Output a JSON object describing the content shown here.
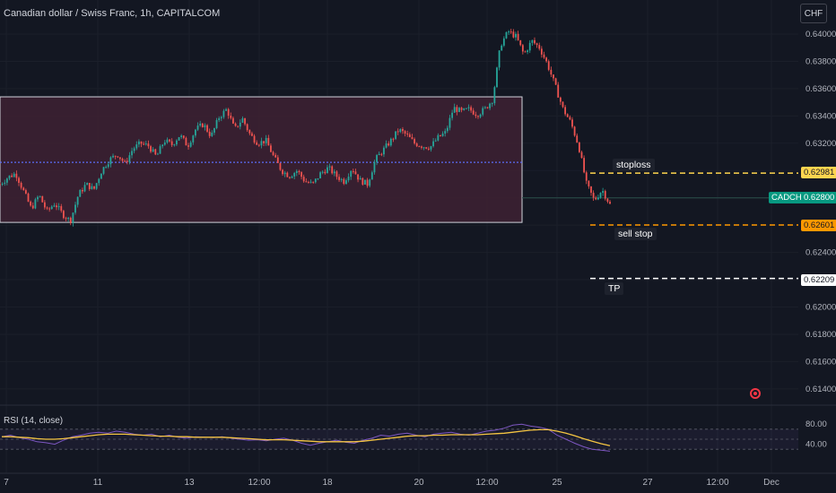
{
  "header": {
    "title": "Canadian dollar / Swiss Franc, 1h, CAPITALCOM",
    "currency_button": "CHF"
  },
  "price_axis": {
    "ticks": [
      "0.64000",
      "0.63800",
      "0.63600",
      "0.63400",
      "0.63200",
      "0.62400",
      "0.62000",
      "0.61800",
      "0.61600",
      "0.61400"
    ]
  },
  "price_boxes": {
    "stoploss_value": "0.62981",
    "symbol_label": "CADCHF",
    "current_value": "0.62800",
    "sellstop_value": "0.62601",
    "tp_value": "0.62209"
  },
  "annotations": {
    "stoploss": "stoploss",
    "sell_stop": "sell stop",
    "tp": "TP"
  },
  "rsi": {
    "label": "RSI (14, close)",
    "ticks": [
      "80.00",
      "40.00"
    ]
  },
  "time_axis": {
    "ticks": [
      "7",
      "11",
      "13",
      "12:00",
      "18",
      "20",
      "12:00",
      "25",
      "27",
      "12:00",
      "Dec"
    ]
  },
  "colors": {
    "background": "#131722",
    "up": "#26a69a",
    "down": "#ef5350",
    "box_fill": "#3e2133",
    "stoploss_line": "#ffd54f",
    "sellstop_line": "#ff9800",
    "tp_line": "#ffffff",
    "rsi_line": "#7e57c2",
    "rsi_ma": "#f5c542"
  },
  "chart_data": {
    "type": "candlestick",
    "x_ticks": [
      "7",
      "11",
      "13",
      "12:00",
      "18",
      "20",
      "12:00",
      "25",
      "27",
      "12:00",
      "Dec"
    ],
    "price_range": [
      0.613,
      0.6415
    ],
    "key_levels": {
      "stoploss": 0.62981,
      "current": 0.628,
      "sell_stop": 0.62601,
      "tp": 0.62209
    },
    "range_box": {
      "top": 0.6354,
      "bottom": 0.6262,
      "midline": 0.6306
    },
    "close_path": [
      0.629,
      0.6295,
      0.6298,
      0.6285,
      0.6272,
      0.6282,
      0.627,
      0.6276,
      0.6268,
      0.6263,
      0.6282,
      0.629,
      0.6286,
      0.63,
      0.6308,
      0.6312,
      0.6305,
      0.6316,
      0.632,
      0.6318,
      0.631,
      0.6322,
      0.6319,
      0.6326,
      0.6318,
      0.633,
      0.6334,
      0.6325,
      0.6339,
      0.6345,
      0.633,
      0.6338,
      0.6326,
      0.632,
      0.6322,
      0.631,
      0.63,
      0.6296,
      0.63,
      0.6292,
      0.629,
      0.6298,
      0.6302,
      0.6296,
      0.6292,
      0.6302,
      0.6293,
      0.629,
      0.6308,
      0.6315,
      0.6322,
      0.633,
      0.6326,
      0.632,
      0.6318,
      0.6317,
      0.6324,
      0.6328,
      0.6346,
      0.6343,
      0.6345,
      0.6341,
      0.6345,
      0.6352,
      0.6392,
      0.6402,
      0.6398,
      0.6385,
      0.6395,
      0.639,
      0.6378,
      0.6362,
      0.6345,
      0.6335,
      0.6318,
      0.629,
      0.6278,
      0.6286,
      0.6275
    ],
    "rsi": {
      "range": [
        0,
        100
      ],
      "bands": [
        70,
        30
      ],
      "values": [
        55,
        58,
        53,
        50,
        45,
        43,
        40,
        48,
        55,
        58,
        62,
        64,
        62,
        66,
        64,
        60,
        58,
        60,
        55,
        58,
        54,
        52,
        55,
        54,
        53,
        55,
        52,
        50,
        48,
        49,
        47,
        50,
        52,
        48,
        42,
        38,
        42,
        45,
        48,
        44,
        42,
        48,
        52,
        58,
        56,
        60,
        62,
        58,
        55,
        60,
        62,
        64,
        60,
        58,
        62,
        66,
        68,
        72,
        78,
        80,
        76,
        74,
        70,
        58,
        50,
        42,
        35,
        30,
        28,
        26
      ],
      "ma": [
        55,
        55,
        54,
        53,
        51,
        50,
        50,
        51,
        53,
        55,
        57,
        59,
        60,
        60,
        60,
        59,
        58,
        57,
        56,
        56,
        55,
        55,
        54,
        54,
        54,
        54,
        53,
        52,
        51,
        50,
        49,
        49,
        49,
        48,
        47,
        46,
        45,
        45,
        45,
        45,
        45,
        46,
        48,
        50,
        52,
        54,
        56,
        57,
        57,
        58,
        58,
        59,
        59,
        59,
        59,
        60,
        61,
        62,
        64,
        66,
        68,
        69,
        69,
        66,
        62,
        57,
        51,
        46,
        41,
        37
      ]
    }
  }
}
